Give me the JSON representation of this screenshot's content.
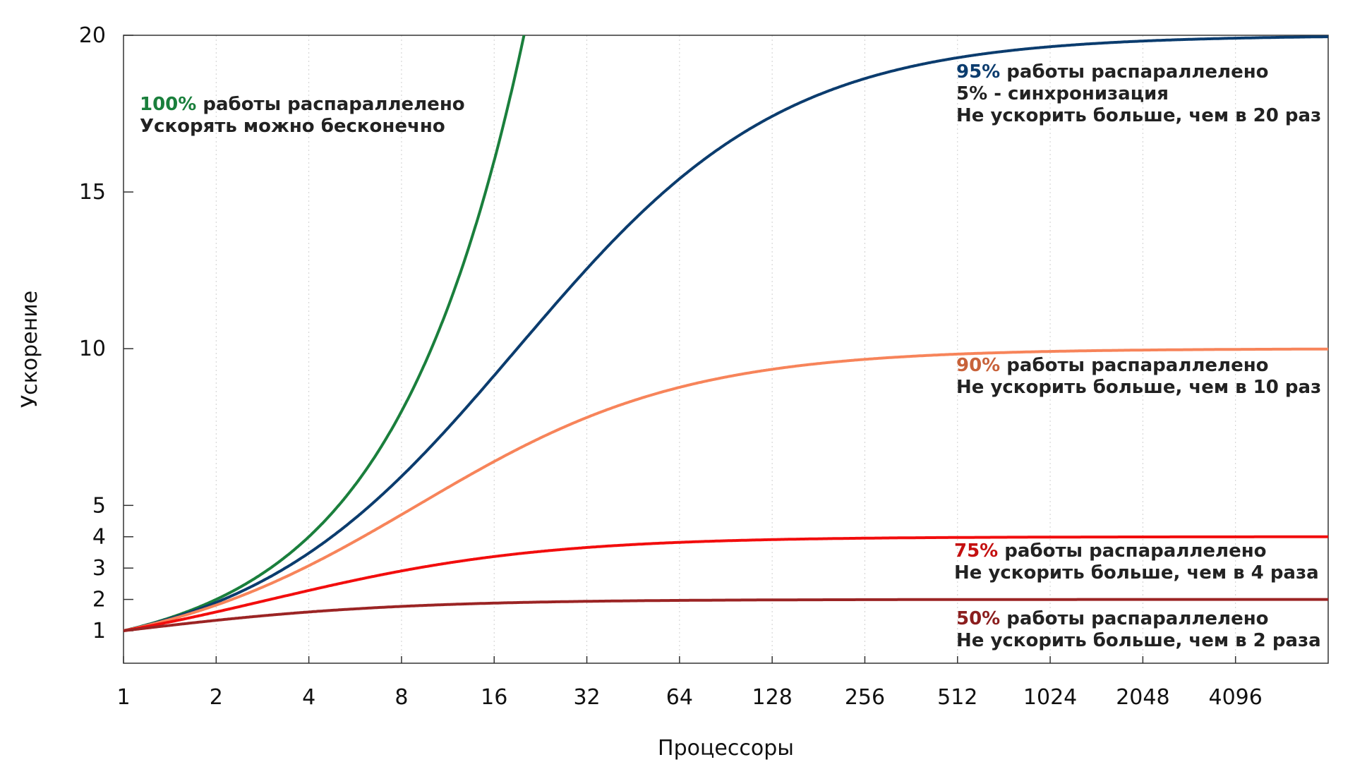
{
  "chart_data": {
    "type": "line",
    "xlabel": "Процессоры",
    "ylabel": "Ускорение",
    "x_scale": "log2",
    "x_range": [
      1,
      8192
    ],
    "y_range": [
      0,
      20
    ],
    "x_ticks": [
      1,
      2,
      4,
      8,
      16,
      32,
      64,
      128,
      256,
      512,
      1024,
      2048,
      4096
    ],
    "x_tick_labels": [
      "1",
      "2",
      "4",
      "8",
      "16",
      "32",
      "64",
      "128",
      "256",
      "512",
      "1024",
      "2048",
      "4096"
    ],
    "y_ticks": [
      1,
      2,
      3,
      4,
      5,
      10,
      15,
      20
    ],
    "y_tick_labels": [
      "1",
      "2",
      "3",
      "4",
      "5",
      "10",
      "15",
      "20"
    ],
    "grid": true,
    "series": [
      {
        "key": "p100",
        "parallel_fraction": 1.0,
        "color": "#1a7f3c"
      },
      {
        "key": "p95",
        "parallel_fraction": 0.95,
        "color": "#0b3c6e"
      },
      {
        "key": "p90",
        "parallel_fraction": 0.9,
        "color": "#f7845a"
      },
      {
        "key": "p75",
        "parallel_fraction": 0.75,
        "color": "#f20d0d"
      },
      {
        "key": "p50",
        "parallel_fraction": 0.5,
        "color": "#9b2424"
      }
    ],
    "annotations": [
      {
        "series": "p100",
        "color": "#1a7f3c",
        "lines": [
          {
            "pct": "100%",
            "text": " работы распараллелено"
          },
          {
            "pct": "",
            "text": "Ускорять можно бесконечно"
          }
        ]
      },
      {
        "series": "p95",
        "color": "#0b3c6e",
        "lines": [
          {
            "pct": "95%",
            "text": " работы распараллелено"
          },
          {
            "pct": "",
            "text": "5% - синхронизация"
          },
          {
            "pct": "",
            "text": "Не ускорить больше, чем в 20 раз"
          }
        ]
      },
      {
        "series": "p90",
        "color": "#c8623a",
        "lines": [
          {
            "pct": "90%",
            "text": " работы распараллелено"
          },
          {
            "pct": "",
            "text": "Не ускорить больше, чем в 10 раз"
          }
        ]
      },
      {
        "series": "p75",
        "color": "#c41010",
        "lines": [
          {
            "pct": "75%",
            "text": " работы распараллелено"
          },
          {
            "pct": "",
            "text": "Не ускорить больше, чем в 4 раза"
          }
        ]
      },
      {
        "series": "p50",
        "color": "#8b1e1e",
        "lines": [
          {
            "pct": "50%",
            "text": " работы распараллелено"
          },
          {
            "pct": "",
            "text": "Не ускорить больше, чем в 2 раза"
          }
        ]
      }
    ]
  }
}
